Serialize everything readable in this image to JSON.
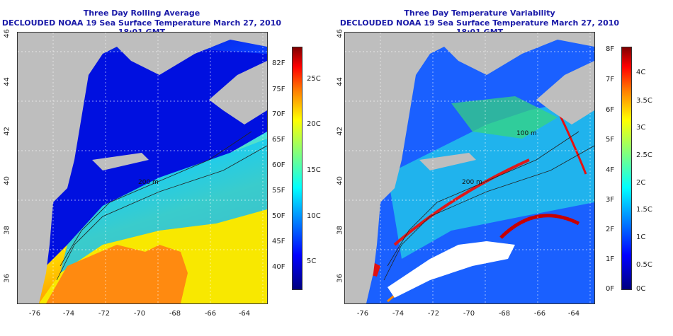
{
  "left_panel": {
    "title_line1": "Three Day Rolling Average",
    "title_line2": "DECLOUDED NOAA 19 Sea Surface Temperature March 27, 2010 18:01 GMT",
    "contour_label": "200 m",
    "colorbar_fahrenheit": [
      "82F",
      "75F",
      "70F",
      "65F",
      "60F",
      "55F",
      "50F",
      "45F",
      "40F"
    ],
    "colorbar_celsius": [
      "25C",
      "20C",
      "15C",
      "10C",
      "5C"
    ]
  },
  "right_panel": {
    "title_line1": "Three Day Temperature Variability",
    "title_line2": "DECLOUDED NOAA 19 Sea Surface Temperature March 27, 2010 18:01 GMT",
    "contour_label": "200 m",
    "contour_label_2": "100 m",
    "colorbar_fahrenheit": [
      "8F",
      "7F",
      "6F",
      "5F",
      "4F",
      "3F",
      "2F",
      "1F",
      "0F"
    ],
    "colorbar_celsius": [
      "4C",
      "3.5C",
      "3C",
      "2.5C",
      "2C",
      "1.5C",
      "1C",
      "0.5C",
      "0C"
    ]
  },
  "axes": {
    "latitude_ticks": [
      "46",
      "44",
      "42",
      "40",
      "38",
      "36"
    ],
    "longitude_ticks": [
      "-76",
      "-74",
      "-72",
      "-70",
      "-68",
      "-66",
      "-64"
    ]
  },
  "colors": {
    "title": "#1a1aa8",
    "land": "#bebebe",
    "sst_scale": [
      "#00007f",
      "#0000ff",
      "#007fff",
      "#00ffff",
      "#7fff7f",
      "#ffff00",
      "#ff7f00",
      "#ff0000",
      "#7f0000"
    ]
  }
}
